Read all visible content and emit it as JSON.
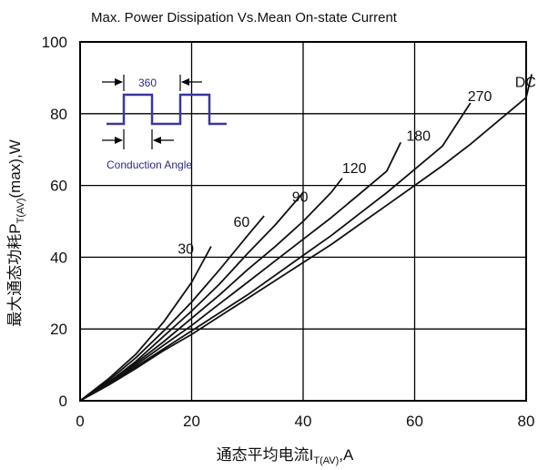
{
  "chart_data": {
    "type": "line",
    "title": "Max. Power Dissipation Vs.Mean On-state Current",
    "xlabel_main": "通态平均电流I",
    "xlabel_sub": "T(AV)",
    "xlabel_unit": ",A",
    "ylabel_main": "最大通态功耗P",
    "ylabel_sub": "T(AV)",
    "ylabel_unit": "(max),W",
    "xlim": [
      0,
      80
    ],
    "ylim": [
      0,
      100
    ],
    "xticks": [
      0,
      20,
      40,
      60,
      80
    ],
    "yticks": [
      0,
      20,
      40,
      60,
      80,
      100
    ],
    "grid": true,
    "series": [
      {
        "name": "30",
        "points": [
          [
            0,
            0
          ],
          [
            5,
            6
          ],
          [
            10,
            13
          ],
          [
            15,
            22
          ],
          [
            20,
            33
          ],
          [
            23.5,
            43
          ]
        ]
      },
      {
        "name": "60",
        "points": [
          [
            0,
            0
          ],
          [
            5,
            5.5
          ],
          [
            10,
            12
          ],
          [
            15,
            19.5
          ],
          [
            20,
            27.5
          ],
          [
            25,
            36.5
          ],
          [
            30,
            46
          ],
          [
            33,
            51.5
          ]
        ]
      },
      {
        "name": "90",
        "points": [
          [
            0,
            0
          ],
          [
            5,
            5
          ],
          [
            10,
            11
          ],
          [
            15,
            18
          ],
          [
            20,
            25
          ],
          [
            25,
            32.5
          ],
          [
            30,
            41
          ],
          [
            35,
            49
          ],
          [
            40,
            58
          ]
        ]
      },
      {
        "name": "120",
        "points": [
          [
            0,
            0
          ],
          [
            5,
            5
          ],
          [
            10,
            10.5
          ],
          [
            15,
            16.5
          ],
          [
            20,
            23
          ],
          [
            25,
            29.5
          ],
          [
            30,
            36.5
          ],
          [
            35,
            43
          ],
          [
            40,
            50
          ],
          [
            45,
            58
          ],
          [
            47,
            62
          ]
        ]
      },
      {
        "name": "180",
        "points": [
          [
            0,
            0
          ],
          [
            5,
            4.7
          ],
          [
            10,
            10
          ],
          [
            15,
            15.5
          ],
          [
            20,
            21
          ],
          [
            25,
            27
          ],
          [
            30,
            33
          ],
          [
            35,
            39
          ],
          [
            40,
            45
          ],
          [
            45,
            51
          ],
          [
            50,
            57.5
          ],
          [
            55,
            64
          ],
          [
            57.5,
            72
          ]
        ]
      },
      {
        "name": "270",
        "points": [
          [
            0,
            0
          ],
          [
            5,
            4.5
          ],
          [
            10,
            9.5
          ],
          [
            15,
            14.5
          ],
          [
            20,
            19.5
          ],
          [
            25,
            24.5
          ],
          [
            30,
            29.5
          ],
          [
            35,
            35
          ],
          [
            40,
            40.5
          ],
          [
            45,
            46
          ],
          [
            50,
            52
          ],
          [
            55,
            58
          ],
          [
            60,
            64.5
          ],
          [
            65,
            71
          ],
          [
            70,
            83
          ]
        ]
      },
      {
        "name": "DC",
        "points": [
          [
            0,
            0
          ],
          [
            5,
            4.3
          ],
          [
            10,
            9
          ],
          [
            15,
            14
          ],
          [
            20,
            18.5
          ],
          [
            25,
            23.5
          ],
          [
            30,
            28.5
          ],
          [
            35,
            33.5
          ],
          [
            40,
            38.5
          ],
          [
            45,
            43.5
          ],
          [
            50,
            49
          ],
          [
            55,
            54.5
          ],
          [
            60,
            60
          ],
          [
            65,
            65.5
          ],
          [
            70,
            71.5
          ],
          [
            75,
            78
          ],
          [
            80,
            84.5
          ],
          [
            81,
            91
          ]
        ]
      }
    ],
    "curve_labels": [
      {
        "text": "30",
        "x": 17.5,
        "y": 41
      },
      {
        "text": "60",
        "x": 27.5,
        "y": 48.5
      },
      {
        "text": "90",
        "x": 38,
        "y": 55.5
      },
      {
        "text": "120",
        "x": 47,
        "y": 63.5
      },
      {
        "text": "180",
        "x": 58.5,
        "y": 72.5
      },
      {
        "text": "270",
        "x": 69.5,
        "y": 83.5
      },
      {
        "text": "DC",
        "x": 78,
        "y": 87.5
      }
    ],
    "inset": {
      "period_label": "360",
      "caption": "Conduction Angle"
    }
  }
}
